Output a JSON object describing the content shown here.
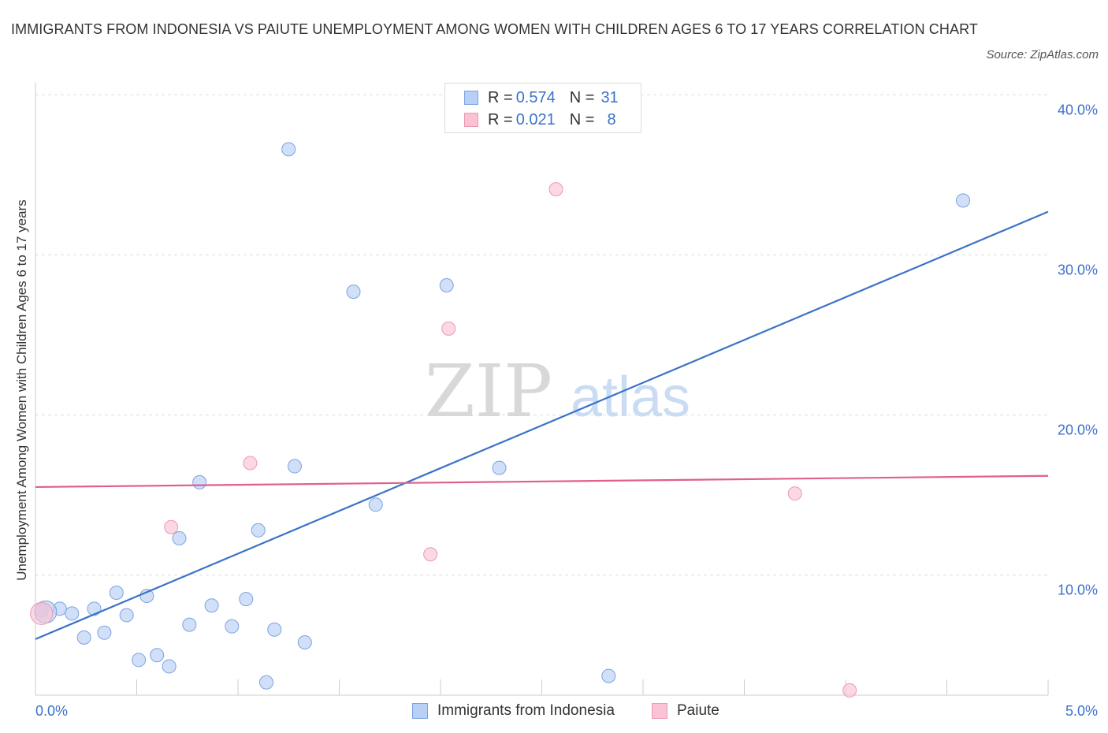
{
  "title": "IMMIGRANTS FROM INDONESIA VS PAIUTE UNEMPLOYMENT AMONG WOMEN WITH CHILDREN AGES 6 TO 17 YEARS CORRELATION CHART",
  "source": "Source: ZipAtlas.com",
  "watermark": {
    "part1": "ZIP",
    "part2": "atlas"
  },
  "colors": {
    "blue": "#3b72c8",
    "blue_fill": "#b8d0f5",
    "pink": "#e0608c",
    "pink_fill": "#f9c3d4",
    "grid": "#dddddd",
    "axis_tick": "#3b72c8"
  },
  "legend_top": {
    "rows": [
      {
        "r_label": "R =",
        "r_value": "0.574",
        "n_label": "N =",
        "n_value": "31"
      },
      {
        "r_label": "R =",
        "r_value": "0.021",
        "n_label": "N =",
        "n_value": "8"
      }
    ]
  },
  "legend_bottom": [
    "Immigrants from Indonesia",
    "Paiute"
  ],
  "chart_data": {
    "type": "scatter",
    "title": "IMMIGRANTS FROM INDONESIA VS PAIUTE UNEMPLOYMENT AMONG WOMEN WITH CHILDREN AGES 6 TO 17 YEARS CORRELATION CHART",
    "xlabel": "",
    "ylabel": "Unemployment Among Women with Children Ages 6 to 17 years",
    "xlim": [
      0,
      5
    ],
    "ylim": [
      2.5,
      41.0
    ],
    "x_tick_labels": [
      "0.0%",
      "5.0%"
    ],
    "y_ticks": [
      10,
      20,
      30,
      40
    ],
    "y_tick_labels": [
      "10.0%",
      "20.0%",
      "30.0%",
      "40.0%"
    ],
    "grid": true,
    "series": [
      {
        "name": "Immigrants from Indonesia",
        "R": 0.574,
        "N": 31,
        "points": [
          [
            0.03,
            7.8
          ],
          [
            0.12,
            7.9
          ],
          [
            0.18,
            7.6
          ],
          [
            0.24,
            6.1
          ],
          [
            0.29,
            7.9
          ],
          [
            0.34,
            6.4
          ],
          [
            0.4,
            8.9
          ],
          [
            0.45,
            7.5
          ],
          [
            0.51,
            4.7
          ],
          [
            0.55,
            8.7
          ],
          [
            0.6,
            5.0
          ],
          [
            0.66,
            4.3
          ],
          [
            0.71,
            12.3
          ],
          [
            0.76,
            6.9
          ],
          [
            0.81,
            15.8
          ],
          [
            0.87,
            8.1
          ],
          [
            0.97,
            6.8
          ],
          [
            1.04,
            8.5
          ],
          [
            1.1,
            12.8
          ],
          [
            1.14,
            3.3
          ],
          [
            1.18,
            6.6
          ],
          [
            1.25,
            36.6
          ],
          [
            1.28,
            16.8
          ],
          [
            1.33,
            5.8
          ],
          [
            1.57,
            27.7
          ],
          [
            1.68,
            14.4
          ],
          [
            2.03,
            28.1
          ],
          [
            2.29,
            16.7
          ],
          [
            2.83,
            3.7
          ],
          [
            4.58,
            33.4
          ],
          [
            0.05,
            7.7
          ]
        ],
        "trend": {
          "x": [
            0,
            5
          ],
          "y": [
            6.0,
            32.7
          ]
        }
      },
      {
        "name": "Paiute",
        "R": 0.021,
        "N": 8,
        "points": [
          [
            0.03,
            7.6
          ],
          [
            0.67,
            13.0
          ],
          [
            1.06,
            17.0
          ],
          [
            1.95,
            11.3
          ],
          [
            2.04,
            25.4
          ],
          [
            2.57,
            34.1
          ],
          [
            3.75,
            15.1
          ],
          [
            4.02,
            2.8
          ]
        ],
        "trend": {
          "x": [
            0,
            5
          ],
          "y": [
            15.5,
            16.2
          ]
        }
      }
    ]
  }
}
